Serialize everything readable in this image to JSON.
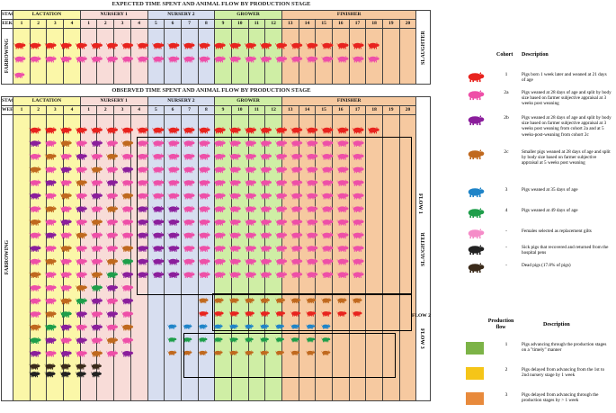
{
  "titles": {
    "expected": "EXPECTED TIME SPENT AND ANIMAL FLOW BY PRODUCTION STAGE",
    "observed": "OBSERVED TIME SPENT AND ANIMAL FLOW BY PRODUCTION STAGE"
  },
  "header": {
    "stage_label": "STAGE",
    "week_label_top": "EEK",
    "week_label_bottom": "WEEK",
    "stages": [
      "LACTATION",
      "NURSERY 1",
      "NURSERY 2",
      "GROWER",
      "FINISHER"
    ],
    "weeks": [
      "1",
      "2",
      "3",
      "4",
      "1",
      "2",
      "3",
      "4",
      "5",
      "6",
      "7",
      "8",
      "9",
      "10",
      "11",
      "12",
      "13",
      "14",
      "15",
      "16",
      "17",
      "18",
      "19",
      "20"
    ],
    "weeks_bottom": [
      "1",
      "2",
      "3",
      "4",
      "1",
      "2",
      "3",
      "4",
      "5",
      "6",
      "7",
      "8",
      "9",
      "10",
      "11",
      "12",
      "13",
      "14",
      "15",
      "16",
      "17",
      "18",
      "19",
      "20"
    ],
    "farrowing": "FARROWING",
    "slaughter": "SLAUGHTER"
  },
  "colors": {
    "lactation": "#fbf7a8",
    "nursery1": "#f8dcd8",
    "nursery2": "#d7def0",
    "grower": "#cfeea5",
    "finisher": "#f6c9a0",
    "flow1": "#7cb347",
    "flow2": "#f5c518",
    "flow3": "#e88a3c"
  },
  "flows": {
    "flow1": "FLOW 1",
    "flow2": "FLOW 2",
    "flow3": "FLOW 3"
  },
  "legend": {
    "cohort_header": "Cohort",
    "desc_header": "Description",
    "cohorts": [
      {
        "code": "1",
        "color": "#e8231e",
        "desc": "Pigs born 1 week later and weaned at 21 days of age"
      },
      {
        "code": "2a",
        "color": "#ee4fa8",
        "desc": "Pigs weaned at 28 days of age and split by body size based on farmer subjective appraisal at 3 weeks post weaning"
      },
      {
        "code": "2b",
        "color": "#8b1e9c",
        "desc": "Pigs weaned at 28 days of age and split by body size based on farmer subjective appraisal at 3 weeks post weaning from cohort 2a and at 5 weeks-post-weaning from cohort 2c"
      },
      {
        "code": "2c",
        "color": "#c0691e",
        "desc": "Smaller pigs weaned at 28 days of age and split by body size based on farmer subjective appraisal at 5 weeks post weaning"
      },
      {
        "code": "3",
        "color": "#1f84c8",
        "desc": "Pigs weaned at 35 days of age"
      },
      {
        "code": "4",
        "color": "#1e9e4a",
        "desc": "Pigs weaned at 49 days of age"
      },
      {
        "code": "-",
        "color": "#f58cc8",
        "desc": "Females selected as replacement gilts"
      },
      {
        "code": "-",
        "color": "#222222",
        "desc": "Sick pigs that recovered and returned from the hospital pens"
      },
      {
        "code": "-",
        "color": "#3a2a1a",
        "desc": "Dead pigs (17.8% of pigs)"
      }
    ],
    "flow_header": "Production flow",
    "flow_desc_header": "Description",
    "flows": [
      {
        "code": "1",
        "color": "#7cb347",
        "desc": "Pigs advancing through the production stages on a \"timely\" manner"
      },
      {
        "code": "2",
        "color": "#f5c518",
        "desc": "Pigs delayed from advancing from the 1st to 2nd nursery stage by 1 week"
      },
      {
        "code": "3",
        "color": "#e88a3c",
        "desc": "Pigs delayed from advancing through the production stages by > 1 week"
      }
    ]
  }
}
